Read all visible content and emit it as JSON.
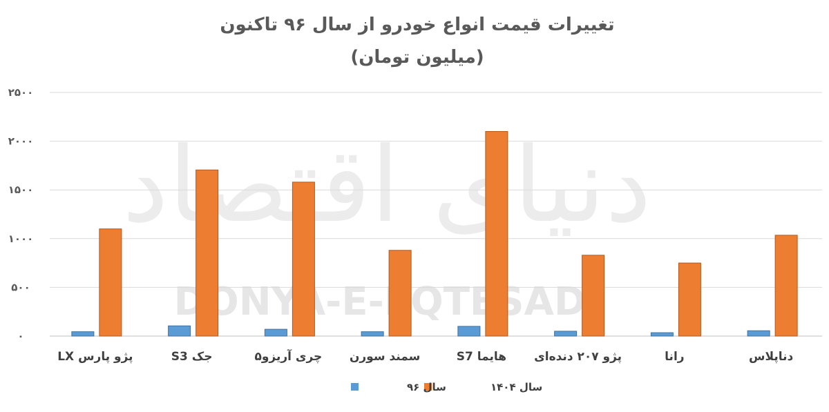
{
  "watermark": {
    "latin": "DONYA-E-EQTESAD",
    "persian": "دنیای اقتصاد"
  },
  "chart_data": {
    "type": "bar",
    "title": "تغییرات قیمت انواع خودرو از سال ۹۶ تاکنون",
    "subtitle": "(میلیون تومان)",
    "categories": [
      "پژو پارس LX",
      "جک S3",
      "چری آریزو۵",
      "سمند سورن",
      "هایما S7",
      "پژو ۲۰۷ دنده‌ای",
      "رانا",
      "دناپلاس"
    ],
    "series": [
      {
        "name": "سال ۹۶",
        "color": "#5b9bd5",
        "values": [
          45,
          105,
          70,
          45,
          100,
          50,
          35,
          55
        ]
      },
      {
        "name": "سال ۱۴۰۴",
        "color": "#ed7d31",
        "values": [
          1100,
          1705,
          1580,
          880,
          2100,
          830,
          750,
          1035
        ]
      }
    ],
    "ylim": [
      0,
      2500
    ],
    "yticks": [
      0,
      500,
      1000,
      1500,
      2000,
      2500
    ],
    "ytick_labels": [
      "۰",
      "۵۰۰",
      "۱۰۰۰",
      "۱۵۰۰",
      "۲۰۰۰",
      "۲۵۰۰"
    ],
    "grid": true,
    "legend_position": "bottom",
    "xlabel": "",
    "ylabel": ""
  }
}
